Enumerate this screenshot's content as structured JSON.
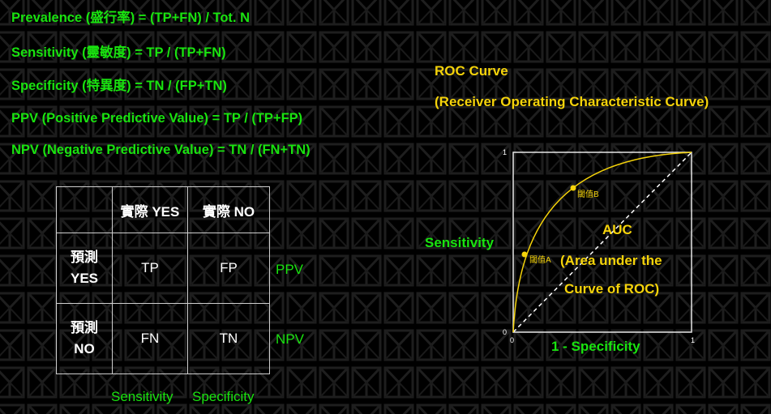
{
  "formulas": {
    "prevalence": "Prevalence (盛行率) = (TP+FN) / Tot. N",
    "sensitivity": "Sensitivity  (靈敏度) = TP / (TP+FN)",
    "specificity": "Specificity  (特異度) = TN / (FP+TN)",
    "ppv": "PPV (Positive Predictive Value) = TP / (TP+FP)",
    "npv": "NPV (Negative Predictive Value) = TN / (FN+TN)"
  },
  "matrix": {
    "col_yes": "實際 YES",
    "col_no": "實際 NO",
    "row_yes_line1": "預測",
    "row_yes_line2": "YES",
    "row_no_line1": "預測",
    "row_no_line2": "NO",
    "tp": "TP",
    "fp": "FP",
    "fn": "FN",
    "tn": "TN",
    "ppv_label": "PPV",
    "npv_label": "NPV",
    "sensitivity_label": "Sensitivity",
    "specificity_label": "Specificity"
  },
  "roc": {
    "title_line1": "ROC Curve",
    "title_line2": "(Receiver Operating Characteristic Curve)",
    "y_label": "Sensitivity",
    "x_label": "1 - Specificity",
    "tick_y_max": "1",
    "tick_origin": "0",
    "tick_x_min": "0",
    "tick_x_max": "1",
    "point_a": "閾值A",
    "point_b": "閾值B",
    "auc_line1": "AUC",
    "auc_line2": "(Area under the",
    "auc_line3": "Curve of ROC)"
  },
  "colors": {
    "green": "#19e30f",
    "yellow": "#f5d30a",
    "background": "#000000",
    "pattern": "#1f1f1f"
  }
}
